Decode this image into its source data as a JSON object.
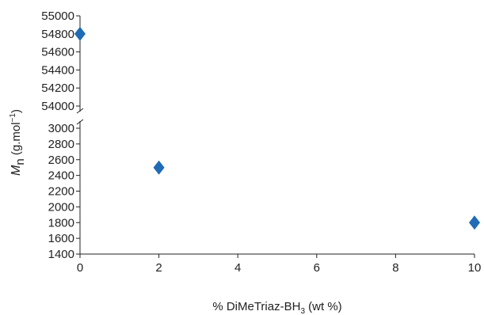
{
  "chart_data": {
    "type": "scatter",
    "title": "",
    "xlabel": {
      "prefix": "% DiMeTriaz-BH",
      "subscript": "3",
      "suffix": " (wt %)"
    },
    "ylabel": {
      "symbol": "M",
      "subscript": "n",
      "unit": " (g.mol",
      "superscript": "−1",
      "unit_close": ")"
    },
    "x_ticks": [
      "0",
      "2",
      "4",
      "6",
      "8",
      "10"
    ],
    "y_ticks_upper": [
      "54000",
      "54200",
      "54400",
      "54600",
      "54800",
      "55000"
    ],
    "y_ticks_lower": [
      "1400",
      "1600",
      "1800",
      "2000",
      "2200",
      "2400",
      "2600",
      "2800",
      "3000"
    ],
    "xlim": [
      0,
      10
    ],
    "ylim_lower": [
      1400,
      3000
    ],
    "ylim_upper": [
      54000,
      55000
    ],
    "broken_y_axis": true,
    "grid": false,
    "marker": "diamond",
    "marker_color": "#1f6bb5",
    "points": [
      {
        "x": 0,
        "y": 54800
      },
      {
        "x": 2,
        "y": 2500
      },
      {
        "x": 10,
        "y": 1800
      }
    ]
  }
}
